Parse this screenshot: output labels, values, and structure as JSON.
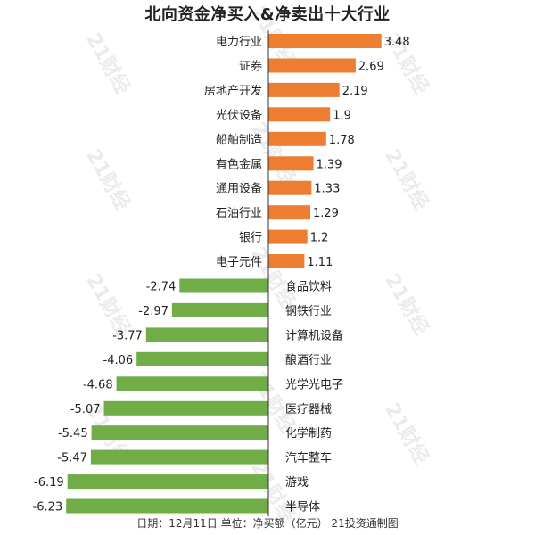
{
  "watermark": "21财经",
  "footer": "日期：12月11日 单位：净买额（亿元） 21投资通制图",
  "chart_data": {
    "type": "bar",
    "orientation": "horizontal",
    "title": "北向资金净买入&净卖出十大行业",
    "categories": [
      "电力行业",
      "证券",
      "房地产开发",
      "光伏设备",
      "船舶制造",
      "有色金属",
      "通用设备",
      "石油行业",
      "银行",
      "电子元件",
      "食品饮料",
      "钢铁行业",
      "计算机设备",
      "酿酒行业",
      "光学光电子",
      "医疗器械",
      "化学制药",
      "汽车整车",
      "游戏",
      "半导体"
    ],
    "values": [
      3.48,
      2.69,
      2.19,
      1.9,
      1.78,
      1.39,
      1.33,
      1.29,
      1.2,
      1.11,
      -2.74,
      -2.97,
      -3.77,
      -4.06,
      -4.68,
      -5.07,
      -5.45,
      -5.47,
      -6.19,
      -6.23
    ],
    "value_labels": [
      "3.48",
      "2.69",
      "2.19",
      "1.9",
      "1.78",
      "1.39",
      "1.33",
      "1.29",
      "1.2",
      "1.11",
      "-2.74",
      "-2.97",
      "-3.77",
      "-4.06",
      "-4.68",
      "-5.07",
      "-5.45",
      "-5.47",
      "-6.19",
      "-6.23"
    ],
    "colors": {
      "positive": "#ED7D31",
      "negative": "#70AD47",
      "axis": "#333333"
    },
    "grid": false,
    "legend": "none",
    "xlim": [
      -6.23,
      3.48
    ]
  }
}
